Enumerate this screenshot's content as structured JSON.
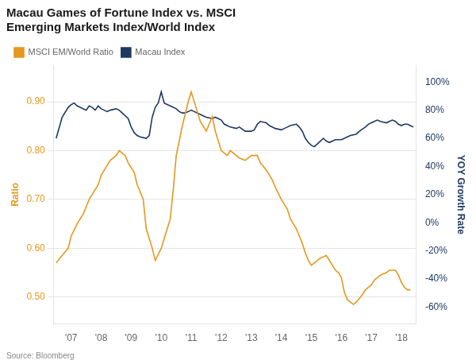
{
  "chart_data": {
    "type": "line",
    "title": [
      "Macau Games of Fortune Index vs. MSCI",
      "Emerging Markets Index/World Index"
    ],
    "ylabel": "Ratio",
    "y2label": "YOY Growth Rate",
    "annotations": [
      "Source: Bloomberg"
    ],
    "legend": "top",
    "grid": true,
    "xlim": [
      2006.42,
      2018.5
    ],
    "xticks": [
      {
        "value": 2007,
        "label": "'07"
      },
      {
        "value": 2008,
        "label": "'08"
      },
      {
        "value": 2009,
        "label": "'09"
      },
      {
        "value": 2010,
        "label": "'10"
      },
      {
        "value": 2011,
        "label": "'11"
      },
      {
        "value": 2012,
        "label": "'12"
      },
      {
        "value": 2013,
        "label": "'13"
      },
      {
        "value": 2014,
        "label": "'14"
      },
      {
        "value": 2015,
        "label": "'15"
      },
      {
        "value": 2016,
        "label": "'16"
      },
      {
        "value": 2017,
        "label": "'17"
      },
      {
        "value": 2018,
        "label": "'18"
      }
    ],
    "ylim": [
      0.445,
      0.975
    ],
    "yticks": [
      {
        "value": 0.5,
        "label": "0.50"
      },
      {
        "value": 0.6,
        "label": "0.60"
      },
      {
        "value": 0.7,
        "label": "0.70"
      },
      {
        "value": 0.8,
        "label": "0.80"
      },
      {
        "value": 0.9,
        "label": "0.90"
      }
    ],
    "y2lim": [
      -0.72,
      1.12
    ],
    "y2ticks": [
      {
        "value": -0.6,
        "label": "-60%"
      },
      {
        "value": -0.4,
        "label": "-40%"
      },
      {
        "value": -0.2,
        "label": "-20%"
      },
      {
        "value": 0.0,
        "label": "0%"
      },
      {
        "value": 0.2,
        "label": "20%"
      },
      {
        "value": 0.4,
        "label": "40%"
      },
      {
        "value": 0.6,
        "label": "60%"
      },
      {
        "value": 0.8,
        "label": "80%"
      },
      {
        "value": 1.0,
        "label": "100%"
      }
    ],
    "series": [
      {
        "name": "MSCI EM/World Ratio",
        "color": "#E5981E",
        "x": [
          2006.5,
          2006.7,
          2006.9,
          2007.0,
          2007.2,
          2007.4,
          2007.6,
          2007.8,
          2007.9,
          2008.0,
          2008.2,
          2008.3,
          2008.5,
          2008.6,
          2008.8,
          2008.9,
          2009.1,
          2009.2,
          2009.4,
          2009.5,
          2009.7,
          2009.8,
          2010.0,
          2010.1,
          2010.3,
          2010.4,
          2010.5,
          2010.6,
          2010.7,
          2010.8,
          2010.9,
          2011.0,
          2011.2,
          2011.3,
          2011.5,
          2011.7,
          2011.8,
          2012.0,
          2012.2,
          2012.3,
          2012.5,
          2012.6,
          2012.8,
          2013.0,
          2013.2,
          2013.3,
          2013.5,
          2013.7,
          2013.8,
          2014.0,
          2014.2,
          2014.3,
          2014.5,
          2014.6,
          2014.7,
          2014.8,
          2014.9,
          2015.0,
          2015.1,
          2015.2,
          2015.3,
          2015.5,
          2015.6,
          2015.7,
          2015.8,
          2015.9,
          2016.0,
          2016.1,
          2016.2,
          2016.4,
          2016.5,
          2016.7,
          2016.8,
          2017.0,
          2017.1,
          2017.3,
          2017.5,
          2017.6,
          2017.8,
          2017.9,
          2018.0,
          2018.1,
          2018.2,
          2018.3
        ],
        "values": [
          0.57,
          0.585,
          0.6,
          0.625,
          0.65,
          0.67,
          0.7,
          0.72,
          0.73,
          0.75,
          0.77,
          0.78,
          0.79,
          0.8,
          0.79,
          0.775,
          0.755,
          0.73,
          0.7,
          0.64,
          0.6,
          0.575,
          0.6,
          0.62,
          0.66,
          0.72,
          0.79,
          0.82,
          0.85,
          0.875,
          0.9,
          0.92,
          0.88,
          0.86,
          0.84,
          0.87,
          0.84,
          0.8,
          0.79,
          0.8,
          0.79,
          0.785,
          0.78,
          0.79,
          0.79,
          0.775,
          0.76,
          0.74,
          0.725,
          0.7,
          0.68,
          0.66,
          0.64,
          0.625,
          0.61,
          0.59,
          0.575,
          0.565,
          0.57,
          0.575,
          0.58,
          0.585,
          0.575,
          0.565,
          0.555,
          0.55,
          0.54,
          0.51,
          0.495,
          0.485,
          0.49,
          0.505,
          0.515,
          0.525,
          0.535,
          0.545,
          0.55,
          0.555,
          0.555,
          0.545,
          0.53,
          0.52,
          0.515,
          0.515
        ]
      },
      {
        "name": "Macau Index",
        "color": "#1F3864",
        "axis": "y2",
        "x": [
          2006.5,
          2006.7,
          2006.9,
          2007.0,
          2007.1,
          2007.2,
          2007.3,
          2007.5,
          2007.6,
          2007.7,
          2007.8,
          2007.9,
          2008.0,
          2008.1,
          2008.2,
          2008.3,
          2008.5,
          2008.6,
          2008.7,
          2008.8,
          2008.9,
          2009.0,
          2009.1,
          2009.2,
          2009.3,
          2009.5,
          2009.6,
          2009.7,
          2009.8,
          2009.9,
          2010.0,
          2010.1,
          2010.2,
          2010.3,
          2010.4,
          2010.5,
          2010.6,
          2010.7,
          2010.8,
          2010.9,
          2011.0,
          2011.1,
          2011.2,
          2011.3,
          2011.4,
          2011.5,
          2011.7,
          2011.8,
          2012.0,
          2012.1,
          2012.2,
          2012.3,
          2012.5,
          2012.6,
          2012.8,
          2013.0,
          2013.1,
          2013.2,
          2013.3,
          2013.5,
          2013.6,
          2013.8,
          2014.0,
          2014.1,
          2014.2,
          2014.3,
          2014.5,
          2014.6,
          2014.7,
          2014.8,
          2014.9,
          2015.0,
          2015.1,
          2015.2,
          2015.3,
          2015.4,
          2015.5,
          2015.6,
          2015.7,
          2015.8,
          2015.9,
          2016.0,
          2016.1,
          2016.2,
          2016.3,
          2016.5,
          2016.6,
          2016.8,
          2016.9,
          2017.0,
          2017.1,
          2017.2,
          2017.3,
          2017.5,
          2017.6,
          2017.7,
          2017.8,
          2017.9,
          2018.0,
          2018.1,
          2018.2,
          2018.3,
          2018.4
        ],
        "values": [
          0.6,
          0.75,
          0.82,
          0.84,
          0.85,
          0.83,
          0.82,
          0.8,
          0.83,
          0.82,
          0.8,
          0.83,
          0.81,
          0.8,
          0.79,
          0.8,
          0.81,
          0.8,
          0.78,
          0.76,
          0.74,
          0.68,
          0.64,
          0.62,
          0.61,
          0.6,
          0.62,
          0.75,
          0.82,
          0.85,
          0.93,
          0.85,
          0.84,
          0.83,
          0.82,
          0.81,
          0.79,
          0.78,
          0.78,
          0.79,
          0.8,
          0.79,
          0.78,
          0.77,
          0.76,
          0.75,
          0.74,
          0.75,
          0.73,
          0.7,
          0.69,
          0.68,
          0.67,
          0.68,
          0.65,
          0.65,
          0.66,
          0.7,
          0.72,
          0.71,
          0.69,
          0.67,
          0.66,
          0.67,
          0.68,
          0.69,
          0.7,
          0.68,
          0.65,
          0.6,
          0.57,
          0.55,
          0.54,
          0.56,
          0.58,
          0.6,
          0.58,
          0.57,
          0.58,
          0.59,
          0.59,
          0.59,
          0.6,
          0.61,
          0.62,
          0.63,
          0.65,
          0.68,
          0.7,
          0.71,
          0.72,
          0.73,
          0.72,
          0.71,
          0.72,
          0.73,
          0.72,
          0.7,
          0.69,
          0.7,
          0.7,
          0.69,
          0.68
        ]
      }
    ]
  }
}
